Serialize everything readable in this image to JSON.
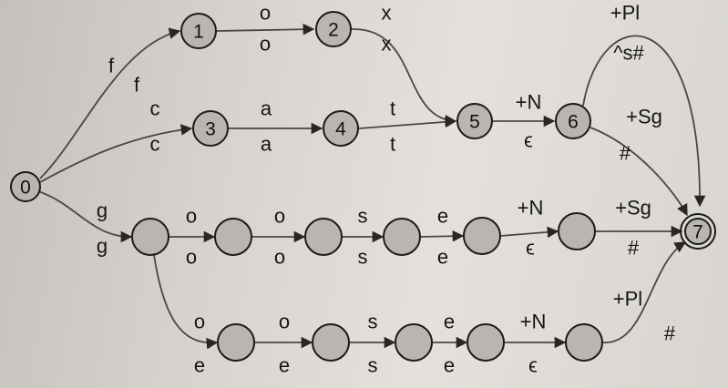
{
  "diagram": {
    "nodes": [
      {
        "id": "n0",
        "label": "0"
      },
      {
        "id": "n1",
        "label": "1"
      },
      {
        "id": "n2",
        "label": "2"
      },
      {
        "id": "n3",
        "label": "3"
      },
      {
        "id": "n4",
        "label": "4"
      },
      {
        "id": "n5",
        "label": "5"
      },
      {
        "id": "n6",
        "label": "6"
      },
      {
        "id": "n7",
        "label": "7",
        "final": true
      },
      {
        "id": "g1",
        "label": ""
      },
      {
        "id": "g2",
        "label": ""
      },
      {
        "id": "g3",
        "label": ""
      },
      {
        "id": "g4",
        "label": ""
      },
      {
        "id": "g5",
        "label": ""
      },
      {
        "id": "g6",
        "label": ""
      },
      {
        "id": "h1",
        "label": ""
      },
      {
        "id": "h2",
        "label": ""
      },
      {
        "id": "h3",
        "label": ""
      },
      {
        "id": "h4",
        "label": ""
      },
      {
        "id": "h5",
        "label": ""
      }
    ],
    "edges": [
      {
        "from": "n0",
        "to": "n1",
        "upper": "f",
        "lower": "f"
      },
      {
        "from": "n1",
        "to": "n2",
        "upper": "o",
        "lower": "o"
      },
      {
        "from": "n2",
        "to": "n5",
        "upper": "x",
        "lower": "x"
      },
      {
        "from": "n0",
        "to": "n3",
        "upper": "c",
        "lower": "c"
      },
      {
        "from": "n3",
        "to": "n4",
        "upper": "a",
        "lower": "a"
      },
      {
        "from": "n4",
        "to": "n5",
        "upper": "t",
        "lower": "t"
      },
      {
        "from": "n5",
        "to": "n6",
        "upper": "+N",
        "lower": "ϵ"
      },
      {
        "from": "n6",
        "to": "n7",
        "upper": "+Pl",
        "lower": "^s#"
      },
      {
        "from": "n6",
        "to": "n7",
        "upper": "+Sg",
        "lower": "#"
      },
      {
        "from": "n0",
        "to": "g1",
        "upper": "g",
        "lower": "g"
      },
      {
        "from": "g1",
        "to": "g2",
        "upper": "o",
        "lower": "o"
      },
      {
        "from": "g2",
        "to": "g3",
        "upper": "o",
        "lower": "o"
      },
      {
        "from": "g3",
        "to": "g4",
        "upper": "s",
        "lower": "s"
      },
      {
        "from": "g4",
        "to": "g5",
        "upper": "e",
        "lower": "e"
      },
      {
        "from": "g5",
        "to": "g6",
        "upper": "+N",
        "lower": "ϵ"
      },
      {
        "from": "g6",
        "to": "n7",
        "upper": "+Sg",
        "lower": "#"
      },
      {
        "from": "g1",
        "to": "h1",
        "upper": "o",
        "lower": "e"
      },
      {
        "from": "h1",
        "to": "h2",
        "upper": "o",
        "lower": "e"
      },
      {
        "from": "h2",
        "to": "h3",
        "upper": "s",
        "lower": "s"
      },
      {
        "from": "h3",
        "to": "h4",
        "upper": "e",
        "lower": "e"
      },
      {
        "from": "h4",
        "to": "h5",
        "upper": "+N",
        "lower": "ϵ"
      },
      {
        "from": "h5",
        "to": "n7",
        "upper": "+Pl",
        "lower": "#"
      }
    ]
  }
}
